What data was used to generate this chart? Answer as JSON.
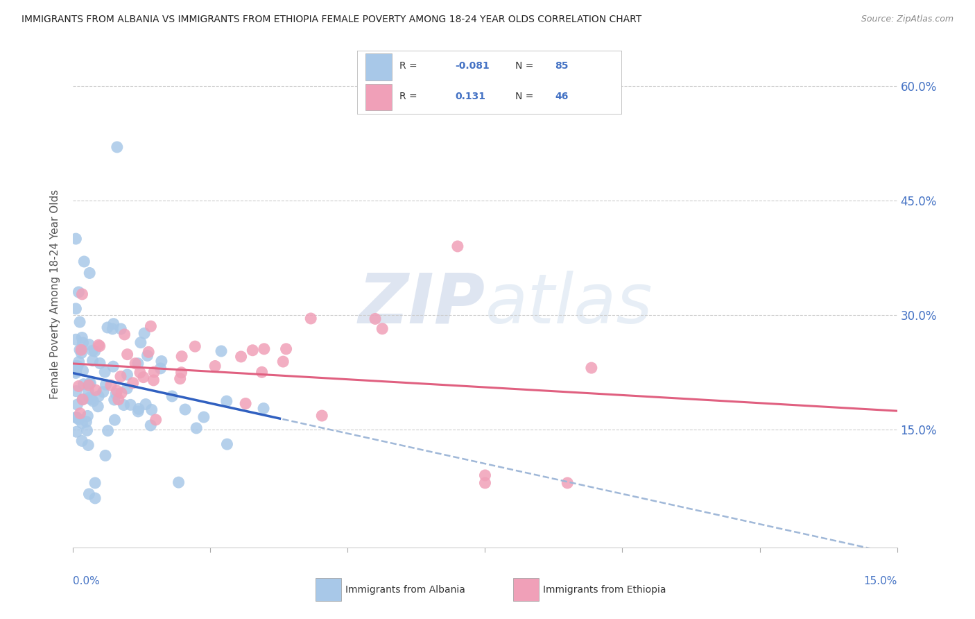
{
  "title": "IMMIGRANTS FROM ALBANIA VS IMMIGRANTS FROM ETHIOPIA FEMALE POVERTY AMONG 18-24 YEAR OLDS CORRELATION CHART",
  "source": "Source: ZipAtlas.com",
  "ylabel": "Female Poverty Among 18-24 Year Olds",
  "ytick_labels": [
    "60.0%",
    "45.0%",
    "30.0%",
    "15.0%"
  ],
  "ytick_values": [
    0.6,
    0.45,
    0.3,
    0.15
  ],
  "xtick_positions": [
    0.0,
    0.025,
    0.05,
    0.075,
    0.1,
    0.125,
    0.15
  ],
  "xlim": [
    0.0,
    0.15
  ],
  "ylim": [
    -0.005,
    0.66
  ],
  "albania_R": "-0.081",
  "albania_N": "85",
  "ethiopia_R": "0.131",
  "ethiopia_N": "46",
  "albania_color": "#a8c8e8",
  "ethiopia_color": "#f0a0b8",
  "albania_line_color": "#3060c0",
  "ethiopia_line_color": "#e06080",
  "dashed_line_color": "#a0b8d8",
  "background_color": "#ffffff",
  "watermark_color": "#ccd8ec",
  "legend_albania_label": "Immigrants from Albania",
  "legend_ethiopia_label": "Immigrants from Ethiopia",
  "title_color": "#222222",
  "source_color": "#888888",
  "axis_label_color": "#4472c4",
  "ylabel_color": "#555555",
  "grid_color": "#cccccc"
}
